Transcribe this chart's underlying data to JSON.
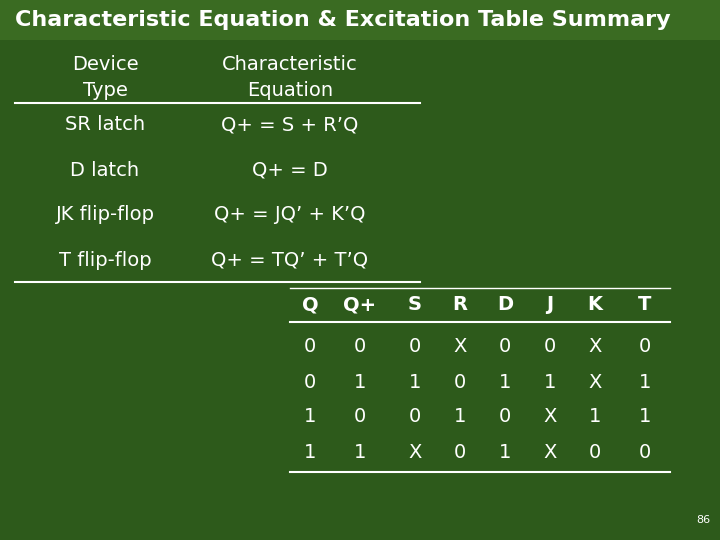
{
  "title": "Characteristic Equation & Excitation Table Summary",
  "bg_color": "#2d5a1b",
  "title_bg_color": "#3a6b22",
  "text_color": "#ffffff",
  "title_fontsize": 16,
  "body_fontsize": 14,
  "small_fontsize": 8,
  "table1_col1_header": [
    "Device",
    "Type"
  ],
  "table1_col2_header": [
    "Characteristic",
    "Equation"
  ],
  "table1_rows": [
    [
      "SR latch",
      "Q+ = S + R’Q"
    ],
    [
      "D latch",
      "Q+ = D"
    ],
    [
      "JK flip-flop",
      "Q+ = JQ’ + K’Q"
    ],
    [
      "T flip-flop",
      "Q+ = TQ’ + T’Q"
    ]
  ],
  "table2_headers": [
    "Q",
    "Q+",
    "S",
    "R",
    "D",
    "J",
    "K",
    "T"
  ],
  "table2_rows": [
    [
      "0",
      "0",
      "0",
      "X",
      "0",
      "0",
      "X",
      "0"
    ],
    [
      "0",
      "1",
      "1",
      "0",
      "1",
      "1",
      "X",
      "1"
    ],
    [
      "1",
      "0",
      "0",
      "1",
      "0",
      "X",
      "1",
      "1"
    ],
    [
      "1",
      "1",
      "X",
      "0",
      "1",
      "X",
      "0",
      "0"
    ]
  ],
  "page_number": "86"
}
